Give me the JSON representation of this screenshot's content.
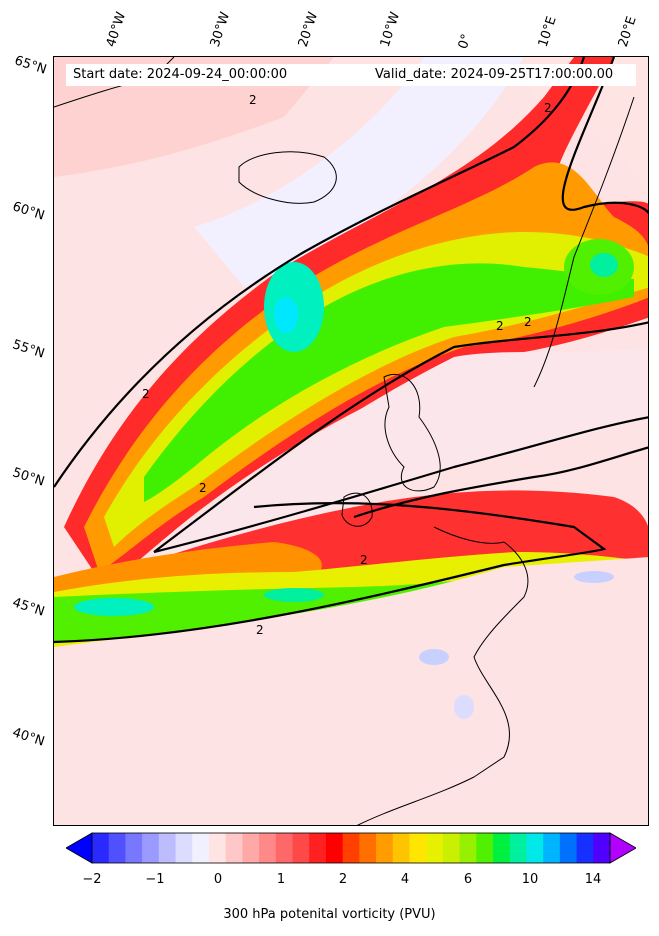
{
  "map": {
    "type": "filled-contour-map",
    "variable": "300 hPa potenital vorticity (PVU)",
    "start_date_text": "Start date: 2024-09-24_00:00:00",
    "valid_date_text": "Valid_date: 2024-09-25T17:00:00.00",
    "longitude_labels": [
      "40°W",
      "30°W",
      "20°W",
      "10°W",
      "0°",
      "10°E",
      "20°E"
    ],
    "latitude_labels": [
      "65°N",
      "60°N",
      "55°N",
      "50°N",
      "45°N",
      "40°N"
    ],
    "contour_labels": [
      "2",
      "2",
      "2",
      "2",
      "2",
      "2",
      "2",
      "2"
    ],
    "colorbar": {
      "tick_labels": [
        "−2",
        "−1",
        "0",
        "1",
        "2",
        "4",
        "6",
        "10",
        "14"
      ],
      "colors": [
        "#0000ff",
        "#2a2aff",
        "#5050ff",
        "#7878ff",
        "#9a9aff",
        "#bcbcff",
        "#dcdcff",
        "#f0f0ff",
        "#ffe4e4",
        "#ffc8c8",
        "#ffa8a8",
        "#ff8888",
        "#ff6868",
        "#ff4848",
        "#ff2020",
        "#ff0000",
        "#ff4000",
        "#ff7000",
        "#ff9c00",
        "#ffc400",
        "#ffe600",
        "#e8f000",
        "#c8f000",
        "#96f000",
        "#50f000",
        "#00f040",
        "#00f0a0",
        "#00e8e8",
        "#00b4ff",
        "#0070ff",
        "#1830ff",
        "#5000ff",
        "#b000ff"
      ]
    }
  }
}
